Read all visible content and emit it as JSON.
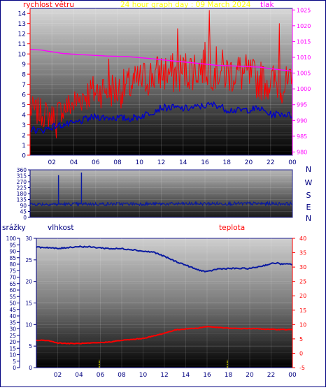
{
  "header": {
    "wind_label": "rychlost větru",
    "title": "24 hour graph day : 09 March 2024",
    "pressure_label": "tlak"
  },
  "direction_letters": [
    "N",
    "W",
    "S",
    "E",
    "N"
  ],
  "lower_header": {
    "rain_label": "srážky",
    "humidity_label": "vlhkost",
    "temp_label": "teplota"
  },
  "colors": {
    "wind": "#ff0000",
    "gust_avg": "#0000c8",
    "pressure": "#ff00ff",
    "direction": "#0a1aa0",
    "humidity": "#0a1aa0",
    "temperature": "#ff0000",
    "rain": "#ffff00",
    "frame": "#000080"
  },
  "chart_data": [
    {
      "type": "line",
      "id": "wind-pressure",
      "x_ticks": [
        "02",
        "04",
        "06",
        "08",
        "10",
        "12",
        "14",
        "16",
        "18",
        "20",
        "22",
        "00"
      ],
      "y_left": {
        "label": "rychlost větru",
        "range": [
          0,
          14.5
        ],
        "ticks": [
          0,
          1,
          2,
          3,
          4,
          5,
          6,
          7,
          8,
          9,
          10,
          11,
          12,
          13,
          14
        ]
      },
      "y_right": {
        "label": "tlak",
        "range": [
          979,
          1025.5
        ],
        "ticks": [
          980,
          985,
          990,
          995,
          1000,
          1005,
          1010,
          1015,
          1020,
          1025
        ]
      },
      "series": [
        {
          "key": "wind_speed",
          "axis": "left",
          "points": [
            [
              0,
              4.5
            ],
            [
              1,
              4.2
            ],
            [
              2,
              3.8
            ],
            [
              3,
              4.6
            ],
            [
              4,
              5.1
            ],
            [
              5,
              6.0
            ],
            [
              6,
              6.3
            ],
            [
              7,
              6.6
            ],
            [
              8,
              6.4
            ],
            [
              9,
              6.8
            ],
            [
              10,
              7.3
            ],
            [
              11,
              7.8
            ],
            [
              12,
              8.2
            ],
            [
              13,
              8.0
            ],
            [
              14,
              8.3
            ],
            [
              15,
              8.5
            ],
            [
              16,
              8.9
            ],
            [
              17,
              8.6
            ],
            [
              18,
              8.1
            ],
            [
              19,
              8.2
            ],
            [
              20,
              7.8
            ],
            [
              21,
              7.4
            ],
            [
              22,
              7.3
            ],
            [
              23,
              7.0
            ],
            [
              24,
              6.8
            ]
          ],
          "amplitude": [
            1.4,
            1.4,
            1.3,
            1.4,
            1.6,
            1.8,
            1.8,
            1.9,
            1.9,
            1.9,
            2.0,
            2.0,
            2.1,
            2.1,
            2.1,
            2.2,
            2.3,
            2.2,
            2.1,
            2.1,
            2.0,
            2.0,
            1.9,
            1.9,
            1.9
          ],
          "spikes": [
            [
              16.4,
              14.3
            ],
            [
              13.5,
              12.5
            ],
            [
              22.8,
              13.0
            ],
            [
              2.4,
              1.7
            ],
            [
              7.2,
              9.5
            ]
          ]
        },
        {
          "key": "average",
          "axis": "left",
          "points": [
            [
              0,
              2.6
            ],
            [
              1,
              2.4
            ],
            [
              2,
              2.8
            ],
            [
              3,
              3.0
            ],
            [
              4,
              3.1
            ],
            [
              5,
              3.5
            ],
            [
              6,
              3.8
            ],
            [
              7,
              3.7
            ],
            [
              8,
              3.7
            ],
            [
              9,
              3.6
            ],
            [
              10,
              3.8
            ],
            [
              11,
              4.2
            ],
            [
              12,
              4.7
            ],
            [
              13,
              4.7
            ],
            [
              14,
              4.6
            ],
            [
              15,
              4.7
            ],
            [
              16,
              4.9
            ],
            [
              17,
              5.0
            ],
            [
              18,
              4.5
            ],
            [
              19,
              4.4
            ],
            [
              20,
              4.5
            ],
            [
              21,
              4.6
            ],
            [
              22,
              4.0
            ],
            [
              23,
              4.1
            ],
            [
              24,
              3.9
            ]
          ],
          "amplitude": [
            0.35,
            0.35,
            0.35,
            0.35,
            0.35,
            0.35,
            0.35,
            0.35,
            0.35,
            0.35,
            0.35,
            0.35,
            0.35,
            0.35,
            0.35,
            0.35,
            0.35,
            0.35,
            0.35,
            0.35,
            0.35,
            0.35,
            0.35,
            0.35,
            0.35
          ]
        },
        {
          "key": "pressure",
          "axis": "right",
          "points": [
            [
              0,
              1012.5
            ],
            [
              1,
              1012.3
            ],
            [
              3,
              1011.2
            ],
            [
              5,
              1010.8
            ],
            [
              7,
              1010.4
            ],
            [
              9,
              1010.2
            ],
            [
              11,
              1009.6
            ],
            [
              13,
              1008.9
            ],
            [
              15,
              1008.2
            ],
            [
              17,
              1007.5
            ],
            [
              19,
              1007.2
            ],
            [
              21,
              1006.9
            ],
            [
              22,
              1006.4
            ],
            [
              24,
              1005.6
            ]
          ],
          "amplitude": [
            0,
            0,
            0,
            0,
            0,
            0,
            0,
            0,
            0,
            0,
            0,
            0,
            0,
            0
          ]
        }
      ]
    },
    {
      "type": "line",
      "id": "wind-direction",
      "x_ticks": [
        "02",
        "04",
        "06",
        "08",
        "10",
        "12",
        "14",
        "16",
        "18",
        "20",
        "22",
        "00"
      ],
      "y": {
        "range": [
          0,
          360
        ],
        "ticks": [
          0,
          45,
          90,
          135,
          180,
          225,
          270,
          315,
          360
        ]
      },
      "series": [
        {
          "key": "direction",
          "points": [
            [
              0,
              100
            ],
            [
              3,
              100
            ],
            [
              6,
              101
            ],
            [
              9,
              102
            ],
            [
              12,
              102
            ],
            [
              15,
              103
            ],
            [
              18,
              104
            ],
            [
              21,
              104
            ],
            [
              24,
              103
            ]
          ],
          "amplitude": [
            12,
            12,
            12,
            12,
            12,
            12,
            12,
            12,
            12
          ],
          "spikes": [
            [
              2.6,
              320
            ],
            [
              4.7,
              340
            ]
          ]
        }
      ]
    },
    {
      "type": "line",
      "id": "humidity-temperature",
      "x_ticks": [
        "02",
        "04",
        "06",
        "08",
        "10",
        "12",
        "14",
        "16",
        "18",
        "20",
        "22",
        "00"
      ],
      "y_rain": {
        "label": "srážky",
        "range": [
          0,
          100
        ],
        "ticks": [
          0,
          5,
          10,
          15,
          20,
          25,
          30,
          35,
          40,
          45,
          50,
          55,
          60,
          65,
          70,
          75,
          80,
          85,
          90,
          95,
          100
        ]
      },
      "y_humidity": {
        "label": "vlhkost",
        "range": [
          0,
          30
        ],
        "ticks": [
          0,
          5,
          10,
          15,
          20,
          25,
          30
        ]
      },
      "y_temp": {
        "label": "teplota",
        "range": [
          -5,
          40
        ],
        "ticks": [
          -5,
          0,
          5,
          10,
          15,
          20,
          25,
          30,
          35,
          40
        ]
      },
      "series": [
        {
          "key": "humidity",
          "axis": "humidity",
          "points": [
            [
              0,
              27.9
            ],
            [
              1,
              27.9
            ],
            [
              2,
              27.6
            ],
            [
              3,
              27.9
            ],
            [
              4,
              28.1
            ],
            [
              5,
              28.0
            ],
            [
              6,
              27.8
            ],
            [
              7,
              27.6
            ],
            [
              8,
              27.6
            ],
            [
              9,
              27.4
            ],
            [
              10,
              27.0
            ],
            [
              11,
              26.8
            ],
            [
              12,
              25.8
            ],
            [
              13,
              24.7
            ],
            [
              14,
              23.8
            ],
            [
              15,
              22.8
            ],
            [
              16,
              22.2
            ],
            [
              16.5,
              22.6
            ],
            [
              17,
              22.9
            ],
            [
              18,
              23.0
            ],
            [
              19,
              23.0
            ],
            [
              20,
              23.0
            ],
            [
              21,
              23.5
            ],
            [
              22,
              24.1
            ],
            [
              22.5,
              24.3
            ],
            [
              23,
              24.0
            ],
            [
              24,
              24.0
            ]
          ],
          "amplitude": [
            0.15,
            0.15,
            0.15,
            0.15,
            0.15,
            0.15,
            0.15,
            0.15,
            0.15,
            0.15,
            0.15,
            0.15,
            0.15,
            0.15,
            0.15,
            0.15,
            0.15,
            0.15,
            0.15,
            0.15,
            0.15,
            0.15,
            0.15,
            0.15,
            0.15,
            0.15,
            0.15
          ]
        },
        {
          "key": "temperature",
          "axis": "temp",
          "points": [
            [
              0,
              4.5
            ],
            [
              1,
              4.5
            ],
            [
              2,
              3.6
            ],
            [
              3,
              3.4
            ],
            [
              4,
              3.4
            ],
            [
              5,
              3.5
            ],
            [
              6,
              3.7
            ],
            [
              7,
              4.0
            ],
            [
              8,
              4.5
            ],
            [
              9,
              4.8
            ],
            [
              10,
              5.2
            ],
            [
              11,
              6.0
            ],
            [
              12,
              7.0
            ],
            [
              13,
              8.1
            ],
            [
              14,
              8.5
            ],
            [
              15,
              8.7
            ],
            [
              16,
              9.3
            ],
            [
              17,
              9.0
            ],
            [
              18,
              8.7
            ],
            [
              19,
              8.6
            ],
            [
              20,
              8.6
            ],
            [
              21,
              8.5
            ],
            [
              22,
              8.3
            ],
            [
              23,
              8.3
            ],
            [
              24,
              8.2
            ]
          ],
          "amplitude": [
            0.12,
            0.12,
            0.12,
            0.12,
            0.12,
            0.12,
            0.12,
            0.12,
            0.12,
            0.12,
            0.12,
            0.12,
            0.12,
            0.12,
            0.12,
            0.12,
            0.12,
            0.12,
            0.12,
            0.12,
            0.12,
            0.12,
            0.12,
            0.12,
            0.12
          ]
        },
        {
          "key": "rain",
          "axis": "rain",
          "bars": [
            [
              5.9,
              6
            ],
            [
              17.9,
              6
            ]
          ]
        }
      ]
    }
  ]
}
